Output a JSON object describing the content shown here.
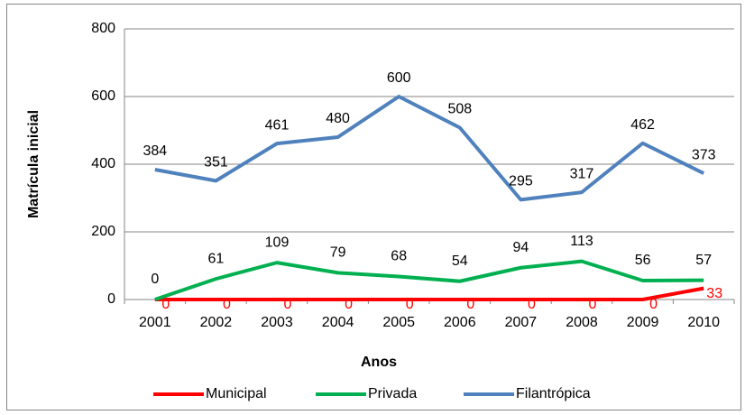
{
  "chart_data": {
    "type": "line",
    "x_label": "Anos",
    "y_label": "Matrícula inicial",
    "categories": [
      "2001",
      "2002",
      "2003",
      "2004",
      "2005",
      "2006",
      "2007",
      "2008",
      "2009",
      "2010"
    ],
    "series": [
      {
        "name": "Municipal",
        "color": "#ff0000",
        "values": [
          0,
          0,
          0,
          0,
          0,
          0,
          0,
          0,
          0,
          33
        ]
      },
      {
        "name": "Privada",
        "color": "#00b050",
        "values": [
          0,
          61,
          109,
          79,
          68,
          54,
          94,
          113,
          56,
          57
        ]
      },
      {
        "name": "Filantrópica",
        "color": "#4f81bd",
        "values": [
          384,
          351,
          461,
          480,
          600,
          508,
          295,
          317,
          462,
          373
        ]
      }
    ],
    "ylim": [
      0,
      800
    ],
    "yticks": [
      0,
      200,
      400,
      600,
      800
    ],
    "grid": true,
    "legend": "bottom"
  }
}
